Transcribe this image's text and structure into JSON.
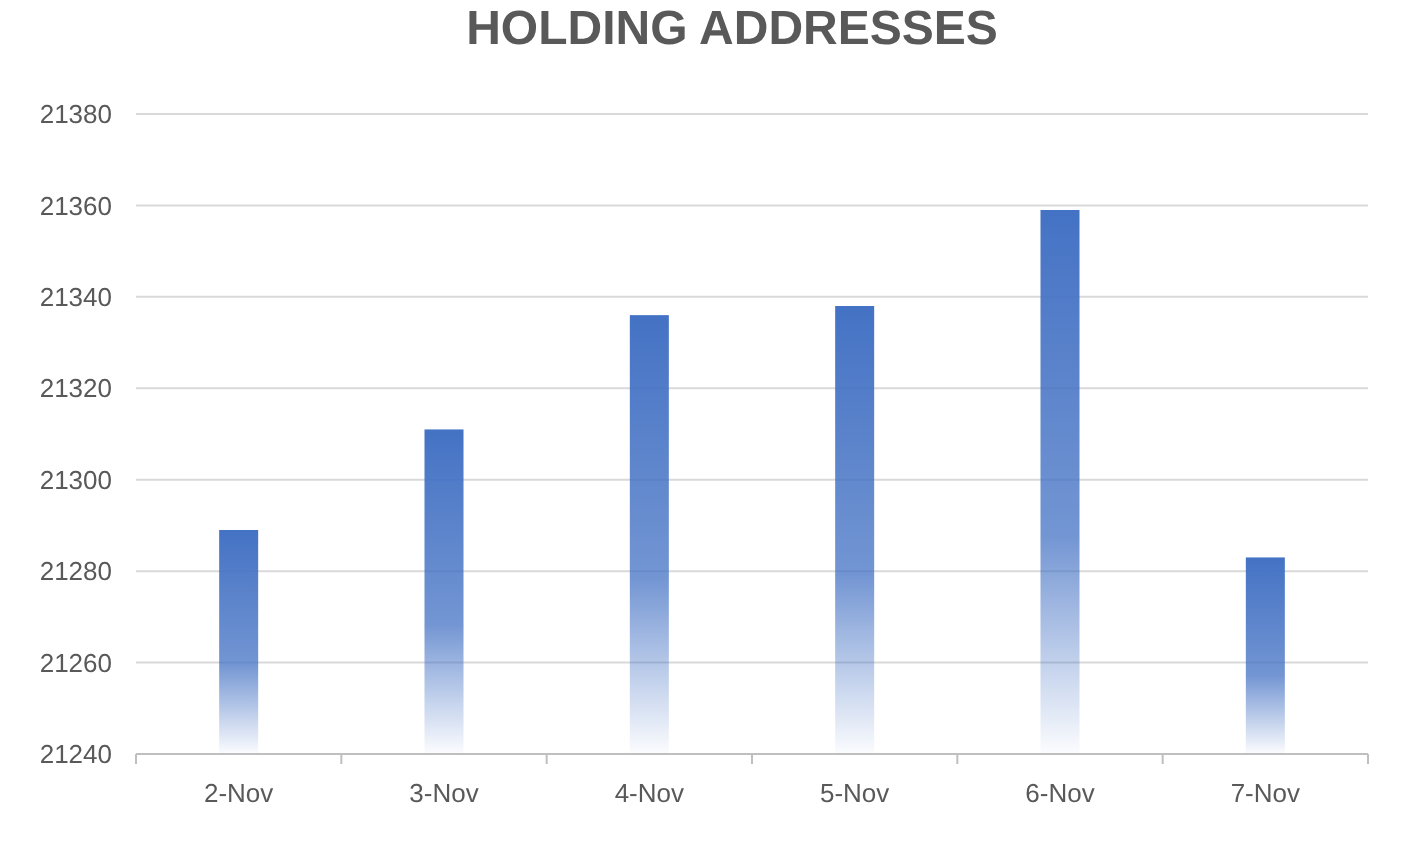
{
  "chart_data": {
    "type": "bar",
    "title": "HOLDING ADDRESSES",
    "categories": [
      "2-Nov",
      "3-Nov",
      "4-Nov",
      "5-Nov",
      "6-Nov",
      "7-Nov"
    ],
    "values": [
      21289,
      21311,
      21336,
      21338,
      21359,
      21283
    ],
    "color": "#4472c4",
    "ylim": [
      21240,
      21380
    ],
    "yticks": [
      21240,
      21260,
      21280,
      21300,
      21320,
      21340,
      21360,
      21380
    ],
    "grid": "y"
  }
}
